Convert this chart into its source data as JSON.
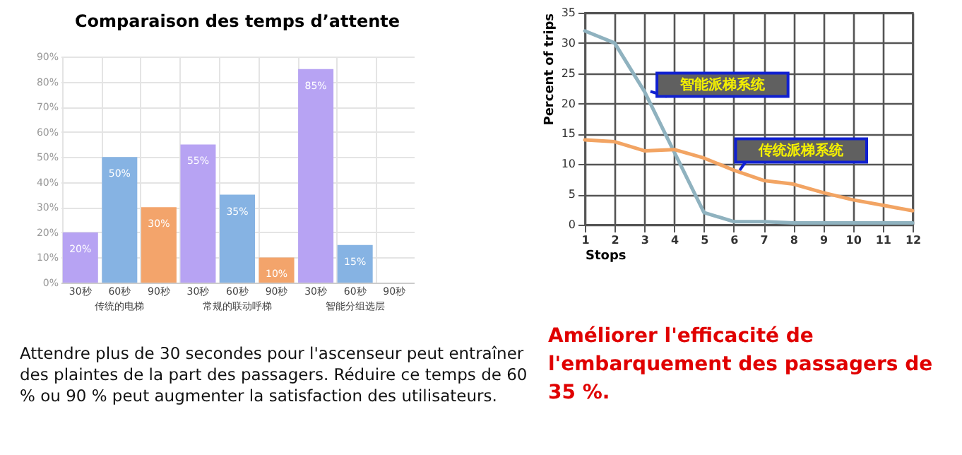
{
  "chart_data": [
    {
      "type": "bar",
      "title": "Comparaison des temps d’attente",
      "categories": [
        "30秒",
        "60秒",
        "90秒",
        "30秒",
        "60秒",
        "90秒",
        "30秒",
        "60秒",
        "90秒"
      ],
      "values": [
        20,
        50,
        30,
        55,
        35,
        10,
        85,
        15,
        null
      ],
      "colors": [
        "#b7a3f3",
        "#86b3e3",
        "#f3a46b",
        "#b7a3f3",
        "#86b3e3",
        "#f3a46b",
        "#b7a3f3",
        "#86b3e3",
        "#f3a46b"
      ],
      "value_labels": [
        "20%",
        "50%",
        "30%",
        "55%",
        "35%",
        "10%",
        "85%",
        "15%",
        null
      ],
      "ylim": [
        0,
        90
      ],
      "yticks": [
        {
          "value": 0,
          "label": "0%"
        },
        {
          "value": 10,
          "label": "10%"
        },
        {
          "value": 20,
          "label": "20%"
        },
        {
          "value": 30,
          "label": "30%"
        },
        {
          "value": 40,
          "label": "40%"
        },
        {
          "value": 50,
          "label": "50%"
        },
        {
          "value": 60,
          "label": "60%"
        },
        {
          "value": 70,
          "label": "70%"
        },
        {
          "value": 80,
          "label": "80%"
        },
        {
          "value": 90,
          "label": "90%"
        }
      ],
      "grid": true,
      "annotations": [
        "传统的电梯",
        "常规的联动呼梯",
        "智能分组选层",
        "Attendre plus de 30 secondes pour l'ascenseur peut entraîner des plaintes de la part des passagers. Réduire ce temps de 60 % ou 90 % peut augmenter la satisfaction des utilisateurs."
      ]
    },
    {
      "type": "line",
      "xlabel": "Stops",
      "ylabel": "Percent of trips",
      "x": [
        1,
        2,
        3,
        4,
        5,
        6,
        7,
        8,
        9,
        10,
        11,
        12
      ],
      "series": [
        {
          "name": "智能派梯系统",
          "color": "#8fb2bf",
          "values": [
            32,
            30,
            22,
            12,
            2,
            0.5,
            0.5,
            0.3,
            0.3,
            0.3,
            0.3,
            0.3
          ]
        },
        {
          "name": "传统派梯系统",
          "color": "#f2a463",
          "values": [
            14,
            13.7,
            12.2,
            12.4,
            11,
            9,
            7.3,
            6.7,
            5.3,
            4.1,
            3.2,
            2.3
          ]
        }
      ],
      "xlim": [
        1,
        12
      ],
      "xticks": [
        1,
        2,
        3,
        4,
        5,
        6,
        7,
        8,
        9,
        10,
        11,
        12
      ],
      "ylim": [
        0,
        35
      ],
      "yticks": [
        0,
        5,
        10,
        15,
        20,
        25,
        30,
        35
      ],
      "grid": true,
      "marker": "none",
      "line_style": "solid",
      "annotations": [
        "Améliorer l'efficacité de l'embarquement des passagers de 35 %."
      ]
    }
  ]
}
